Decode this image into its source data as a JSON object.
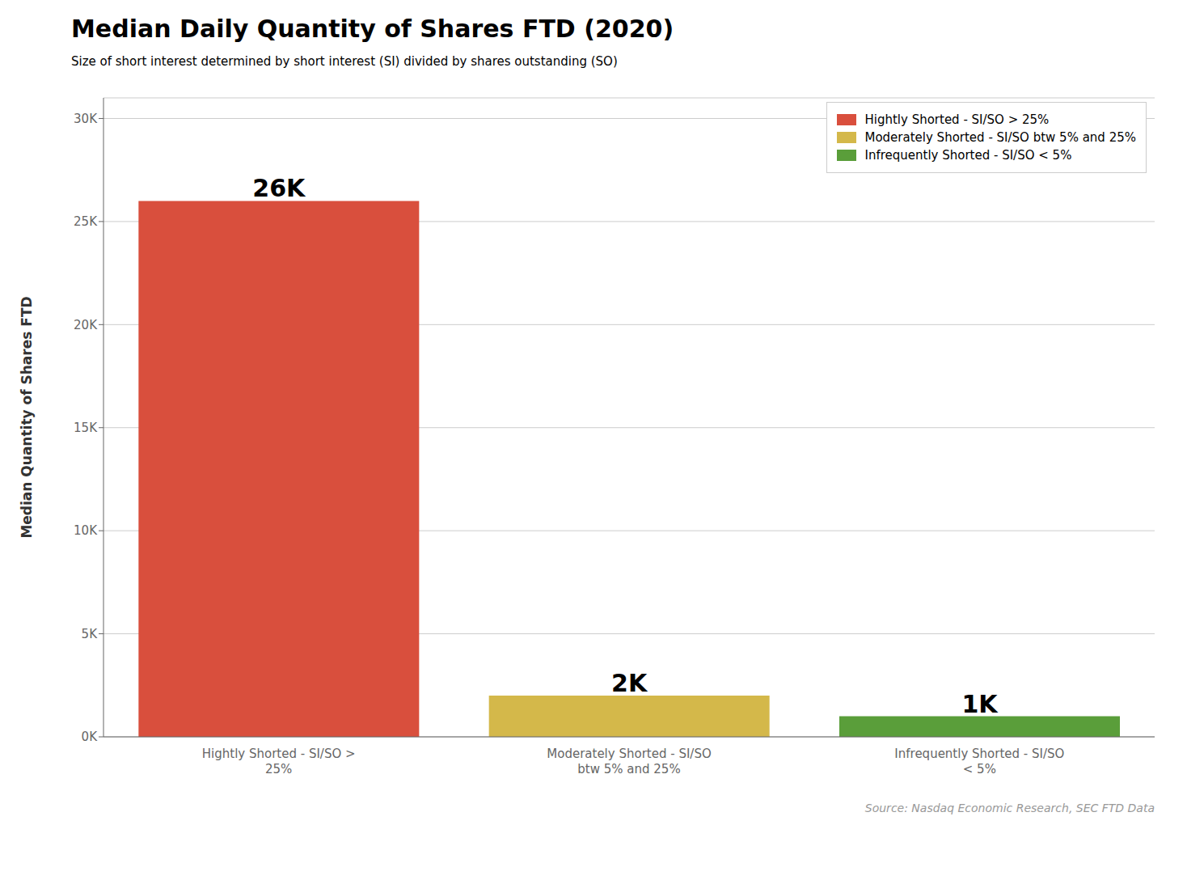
{
  "chart_data": {
    "type": "bar",
    "title": "Median Daily Quantity of Shares FTD (2020)",
    "subtitle": "Size of short interest determined by short interest (SI) divided by shares outstanding (SO)",
    "source": "Source: Nasdaq Economic Research, SEC FTD Data",
    "categories": [
      "Hightly Shorted - SI/SO >\n25%",
      "Moderately Shorted - SI/SO\nbtw 5% and 25%",
      "Infrequently Shorted - SI/SO\n< 5%"
    ],
    "values": [
      26000,
      2000,
      1000
    ],
    "value_labels": [
      "26K",
      "2K",
      "1K"
    ],
    "data_labels": true,
    "colors": [
      "#d94f3d",
      "#d4b84a",
      "#5a9e3a"
    ],
    "ylabel": "Median Quantity of Shares FTD",
    "ylim": [
      0,
      31000
    ],
    "yticks": [
      {
        "value": 0,
        "label": "0K"
      },
      {
        "value": 5000,
        "label": "5K"
      },
      {
        "value": 10000,
        "label": "10K"
      },
      {
        "value": 15000,
        "label": "15K"
      },
      {
        "value": 20000,
        "label": "20K"
      },
      {
        "value": 25000,
        "label": "25K"
      },
      {
        "value": 30000,
        "label": "30K"
      }
    ],
    "grid": true,
    "legend": "upper right",
    "legend_labels": [
      "Hightly Shorted - SI/SO > 25%",
      "Moderately Shorted - SI/SO btw 5% and 25%",
      "Infrequently Shorted - SI/SO < 5%"
    ]
  }
}
